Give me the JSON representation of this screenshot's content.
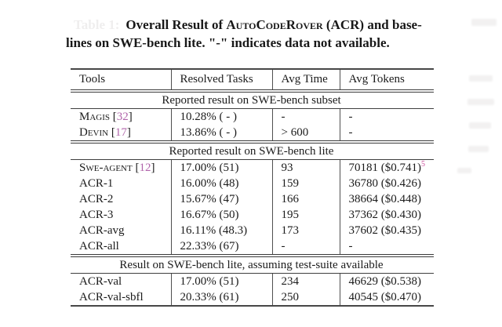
{
  "caption": {
    "label": "Table 1:",
    "line1_a": "Overall Result of ",
    "line1_sc": "AutoCodeRover",
    "line1_b": " (ACR) and base-",
    "line2": "lines on SWE-bench lite. \"-\" indicates data not available."
  },
  "colors": {
    "citation_number": "#b165ab",
    "footnote_marker": "#cb4f9b",
    "text": "#1a1a1a",
    "rule": "#3a3a3a"
  },
  "table": {
    "columns": [
      "Tools",
      "Resolved Tasks",
      "Avg Time",
      "Avg Tokens"
    ],
    "sections": [
      {
        "title": "Reported result on SWE-bench subset",
        "rows": [
          {
            "tool": "Magis",
            "smallcaps": true,
            "cite": "32",
            "resolved": "10.28% ( - )",
            "time": "-",
            "tokens": "-"
          },
          {
            "tool": "Devin",
            "smallcaps": true,
            "cite": "17",
            "resolved": "13.86% ( - )",
            "time": "> 600",
            "tokens": "-"
          }
        ]
      },
      {
        "title": "Reported result on SWE-bench lite",
        "rows": [
          {
            "tool": "Swe-agent",
            "smallcaps": true,
            "cite": "12",
            "resolved": "17.00% (51)",
            "time": "93",
            "tokens": "70181 ($0.741)",
            "tokens_sup": "5"
          },
          {
            "tool": "ACR-1",
            "resolved": "16.00% (48)",
            "time": "159",
            "tokens": "36780 ($0.426)"
          },
          {
            "tool": "ACR-2",
            "resolved": "15.67% (47)",
            "time": "166",
            "tokens": "38664 ($0.448)"
          },
          {
            "tool": "ACR-3",
            "resolved": "16.67% (50)",
            "time": "195",
            "tokens": "37362 ($0.430)"
          },
          {
            "tool": "ACR-avg",
            "resolved": "16.11% (48.3)",
            "time": "173",
            "tokens": "37602 ($0.435)"
          },
          {
            "tool": "ACR-all",
            "resolved": "22.33% (67)",
            "bold_resolved": true,
            "time": "-",
            "tokens": "-"
          }
        ]
      },
      {
        "title": "Result on SWE-bench lite, assuming test-suite available",
        "rows": [
          {
            "tool": "ACR-val",
            "resolved": "17.00% (51)",
            "time": "234",
            "tokens": "46629 ($0.538)"
          },
          {
            "tool": "ACR-val-sbfl",
            "resolved": "20.33% (61)",
            "time": "250",
            "tokens": "40545 ($0.470)"
          }
        ]
      }
    ]
  }
}
